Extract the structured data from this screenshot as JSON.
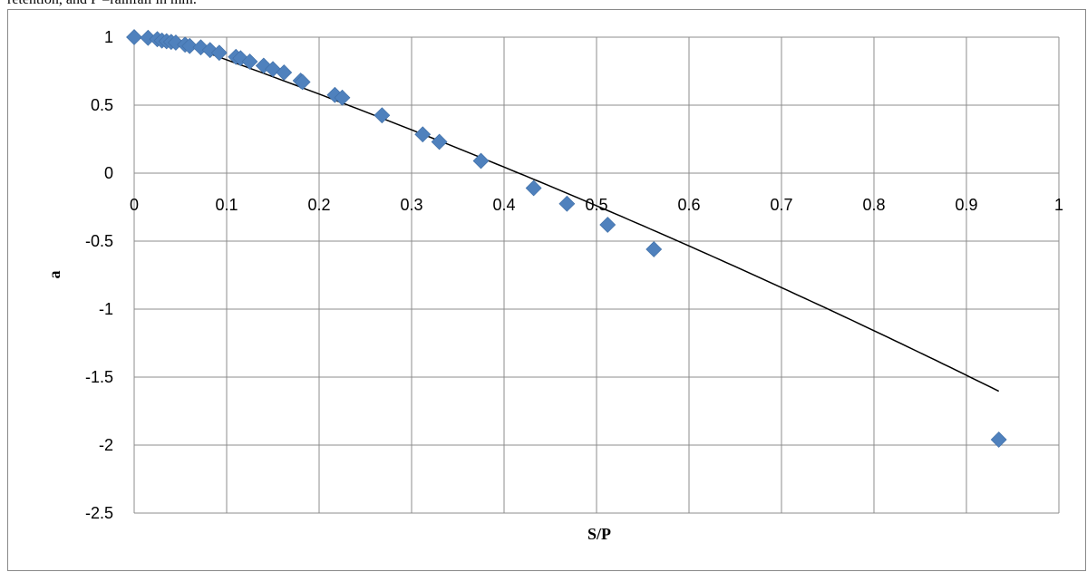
{
  "caption_fragment": "retention, and P =rainfall in mm.",
  "chart_data": {
    "type": "scatter",
    "title": "",
    "xlabel": "S/P",
    "ylabel": "a",
    "xlim": [
      0,
      1
    ],
    "ylim": [
      -2.5,
      1
    ],
    "x_ticks": [
      "0",
      "0.1",
      "0.2",
      "0.3",
      "0.4",
      "0.5",
      "0.6",
      "0.7",
      "0.8",
      "0.9",
      "1"
    ],
    "y_ticks": [
      "1",
      "0.5",
      "0",
      "-0.5",
      "-1",
      "-1.5",
      "-2",
      "-2.5"
    ],
    "grid": true,
    "legend": "none",
    "marker": "diamond",
    "marker_color": "#4f81bd",
    "trendline_color": "#000000",
    "points": [
      [
        0.0,
        1.0
      ],
      [
        0.015,
        0.995
      ],
      [
        0.025,
        0.985
      ],
      [
        0.03,
        0.975
      ],
      [
        0.035,
        0.97
      ],
      [
        0.04,
        0.965
      ],
      [
        0.045,
        0.96
      ],
      [
        0.055,
        0.945
      ],
      [
        0.06,
        0.935
      ],
      [
        0.072,
        0.925
      ],
      [
        0.082,
        0.905
      ],
      [
        0.092,
        0.885
      ],
      [
        0.11,
        0.855
      ],
      [
        0.115,
        0.845
      ],
      [
        0.125,
        0.82
      ],
      [
        0.14,
        0.79
      ],
      [
        0.15,
        0.765
      ],
      [
        0.162,
        0.74
      ],
      [
        0.18,
        0.68
      ],
      [
        0.182,
        0.67
      ],
      [
        0.217,
        0.575
      ],
      [
        0.225,
        0.555
      ],
      [
        0.268,
        0.425
      ],
      [
        0.312,
        0.285
      ],
      [
        0.33,
        0.23
      ],
      [
        0.375,
        0.09
      ],
      [
        0.432,
        -0.11
      ],
      [
        0.468,
        -0.225
      ],
      [
        0.512,
        -0.38
      ],
      [
        0.562,
        -0.56
      ],
      [
        0.935,
        -1.96
      ]
    ],
    "trendline": {
      "type": "polynomial",
      "coefficients": [
        1.075,
        -2.36,
        -0.54
      ],
      "x_range": [
        0.03,
        0.935
      ]
    }
  }
}
